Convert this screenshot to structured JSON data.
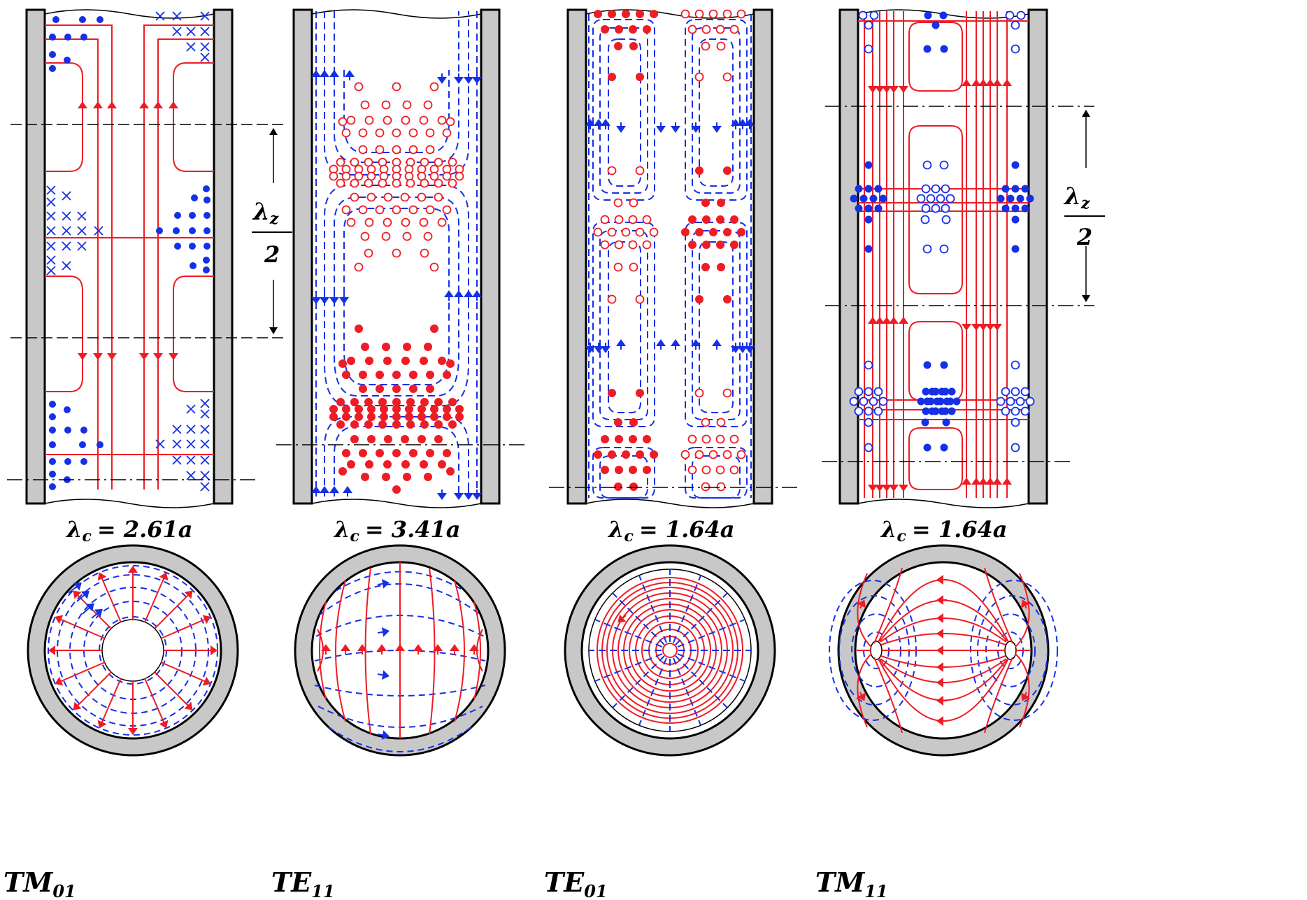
{
  "colors": {
    "wall": "#c8c8c8",
    "electric": "#ee1c25",
    "magnetic": "#1530e6",
    "ink": "#000000"
  },
  "dimension_label": {
    "symbol": "λ",
    "subscript": "z",
    "denominator": "2"
  },
  "panels": [
    {
      "mode": "TM",
      "index": "01",
      "cutoff_prefix": "λ",
      "cutoff_sub": "c",
      "cutoff_value": "= 2.61a"
    },
    {
      "mode": "TE",
      "index": "11",
      "cutoff_prefix": "λ",
      "cutoff_sub": "c",
      "cutoff_value": "= 3.41a"
    },
    {
      "mode": "TE",
      "index": "01",
      "cutoff_prefix": "λ",
      "cutoff_sub": "c",
      "cutoff_value": "= 1.64a"
    },
    {
      "mode": "TM",
      "index": "11",
      "cutoff_prefix": "λ",
      "cutoff_sub": "c",
      "cutoff_value": "= 1.64a"
    }
  ]
}
